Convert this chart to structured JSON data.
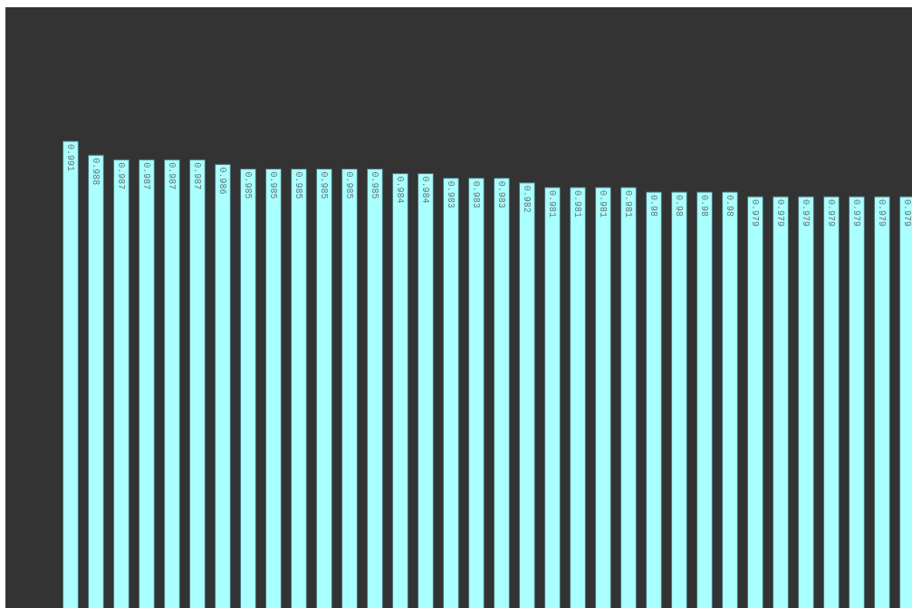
{
  "chart_data": {
    "type": "bar",
    "categories": [
      null,
      null,
      null,
      null,
      null,
      null,
      null,
      null,
      null,
      null,
      null,
      null,
      null,
      null,
      null,
      null,
      null,
      null,
      null,
      null,
      null,
      null,
      null,
      null,
      null,
      null,
      null,
      null,
      null,
      null,
      null,
      null,
      null,
      null
    ],
    "values": [
      0.991,
      0.988,
      0.987,
      0.987,
      0.987,
      0.987,
      0.986,
      0.985,
      0.985,
      0.985,
      0.985,
      0.985,
      0.985,
      0.984,
      0.984,
      0.983,
      0.983,
      0.983,
      0.982,
      0.981,
      0.981,
      0.981,
      0.981,
      0.98,
      0.98,
      0.98,
      0.98,
      0.979,
      0.979,
      0.979,
      0.979,
      0.979,
      0.979,
      0.979
    ],
    "color": "#aaffff",
    "ylim": [
      0.89,
      1.02
    ],
    "data_labels": true,
    "tick_labels": false,
    "grid": false,
    "legend": false
  }
}
